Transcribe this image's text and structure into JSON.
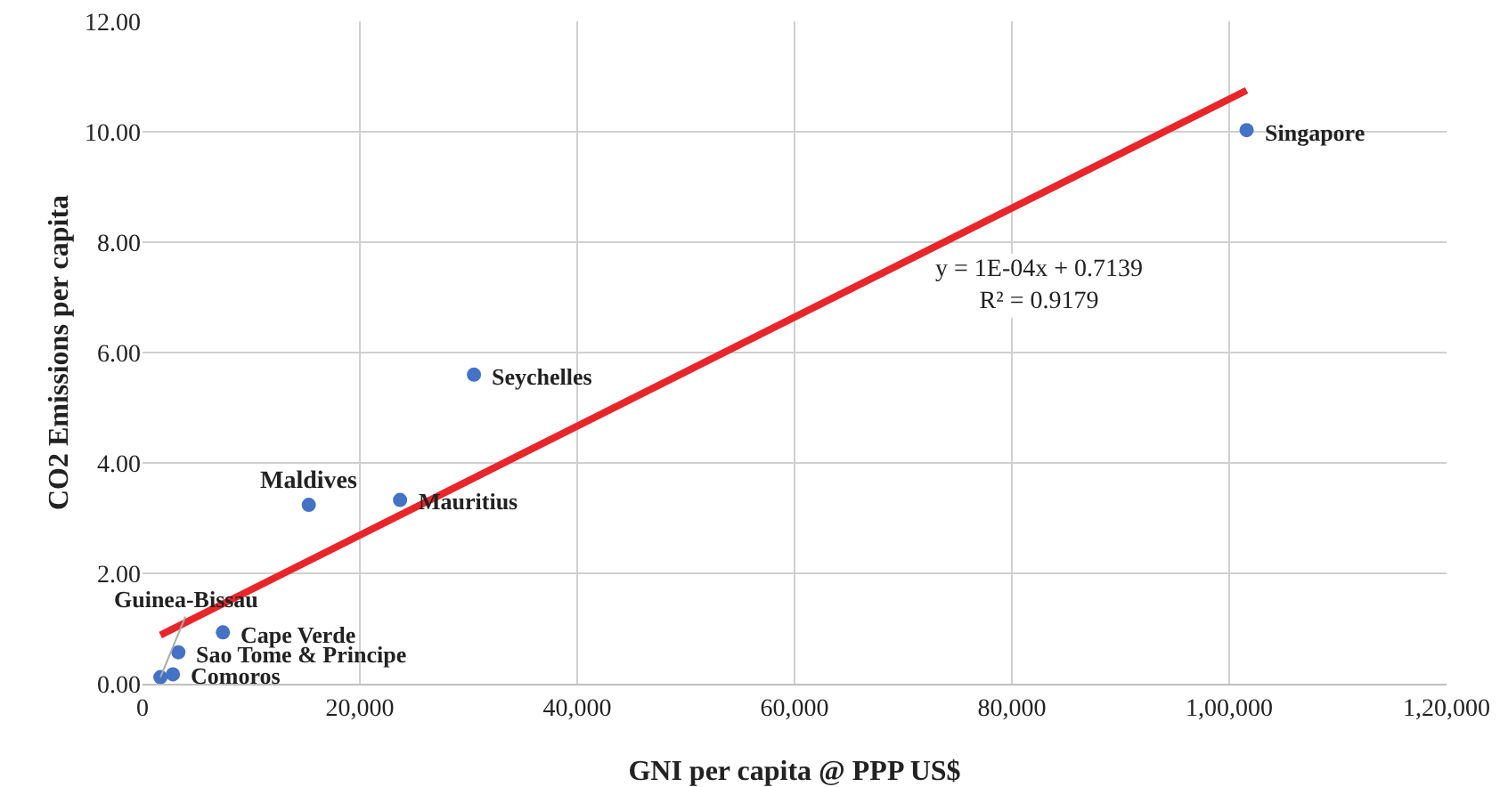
{
  "chart_data": {
    "type": "scatter",
    "xlabel": "GNI per capita @ PPP US$",
    "ylabel": "CO2 Emissions per capita",
    "series": [
      {
        "color": "#4472c4",
        "x": [
          1650,
          2800,
          3300,
          7400,
          15300,
          23700,
          30500,
          101600
        ],
        "values": [
          0.12,
          0.17,
          0.57,
          0.93,
          3.24,
          3.33,
          5.6,
          10.03
        ]
      },
      {
        "type": "line",
        "marker": "none",
        "color": "#e8262a",
        "x": [
          1650,
          101600
        ],
        "values": [
          0.88,
          10.75
        ]
      }
    ],
    "annotations": [
      {
        "text": "Guinea-Bissau",
        "x": 1650,
        "y": 0.12
      },
      {
        "text": "Comoros",
        "x": 2800,
        "y": 0.17
      },
      {
        "text": "Sao Tome & Principe",
        "x": 3300,
        "y": 0.57
      },
      {
        "text": "Cape Verde",
        "x": 7400,
        "y": 0.93
      },
      {
        "text": "Maldives",
        "x": 15300,
        "y": 3.24
      },
      {
        "text": "Mauritius",
        "x": 23700,
        "y": 3.33
      },
      {
        "text": "Seychelles",
        "x": 30500,
        "y": 5.6
      },
      {
        "text": "Singapore",
        "x": 101600,
        "y": 10.03
      },
      "y = 1E-04x + 0.7139\nR² = 0.9179"
    ],
    "xlim": [
      0,
      120000
    ],
    "xticks": [
      {
        "value": 0,
        "label": "0"
      },
      {
        "value": 20000,
        "label": "20,000"
      },
      {
        "value": 40000,
        "label": "40,000"
      },
      {
        "value": 60000,
        "label": "60,000"
      },
      {
        "value": 80000,
        "label": "80,000"
      },
      {
        "value": 100000,
        "label": "1,00,000"
      },
      {
        "value": 120000,
        "label": "1,20,000"
      }
    ],
    "ylim": [
      0,
      12
    ],
    "yticks": [
      {
        "value": 0,
        "label": "0.00"
      },
      {
        "value": 2,
        "label": "2.00"
      },
      {
        "value": 4,
        "label": "4.00"
      },
      {
        "value": 6,
        "label": "6.00"
      },
      {
        "value": 8,
        "label": "8.00"
      },
      {
        "value": 10,
        "label": "10.00"
      },
      {
        "value": 12,
        "label": "12.00"
      }
    ],
    "grid": true,
    "legend": false,
    "marker": "circle"
  }
}
